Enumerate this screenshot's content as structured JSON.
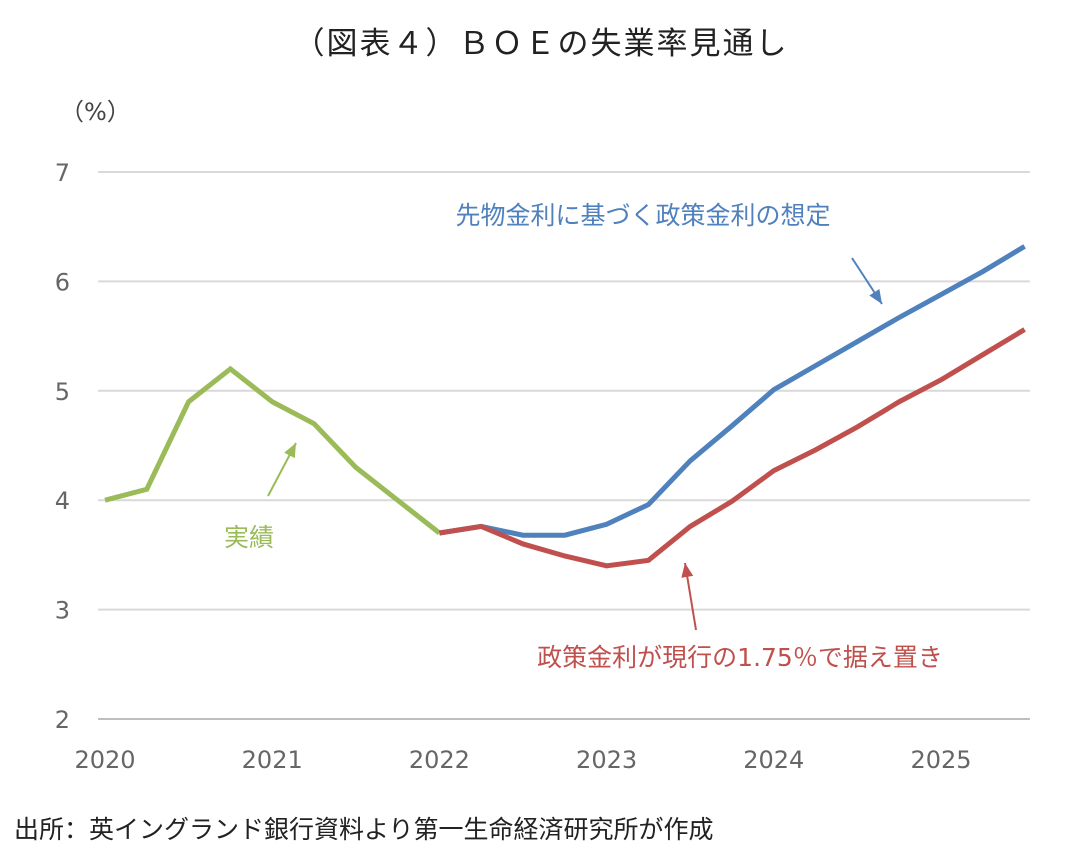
{
  "chart_data": {
    "type": "line",
    "title": "（図表４）ＢＯＥの失業率見通し",
    "ylabel": "（%）",
    "source": "出所：英イングランド銀行資料より第一生命経済研究所が作成",
    "ylim": [
      2,
      7
    ],
    "yticks": [
      "2",
      "3",
      "4",
      "5",
      "6",
      "7"
    ],
    "xticks": [
      "2020",
      "2021",
      "2022",
      "2023",
      "2024",
      "2025"
    ],
    "grid": true,
    "x_note": "quarterly from 2020 Q1",
    "series": [
      {
        "name": "実績",
        "color": "#9BBB59",
        "start_quarter": 0,
        "values": [
          4.0,
          4.1,
          4.9,
          5.2,
          4.9,
          4.7,
          4.3,
          4.0,
          3.7
        ]
      },
      {
        "name": "先物金利に基づく政策金利の想定",
        "color": "#4F81BD",
        "start_quarter": 8,
        "values": [
          3.7,
          3.76,
          3.68,
          3.68,
          3.78,
          3.96,
          4.36,
          4.68,
          5.01,
          5.23,
          5.45,
          5.67,
          5.88,
          6.09,
          6.32
        ]
      },
      {
        "name": "政策金利が現行の1.75％で据え置き",
        "color": "#C0504D",
        "start_quarter": 8,
        "values": [
          3.7,
          3.76,
          3.6,
          3.49,
          3.4,
          3.45,
          3.76,
          3.99,
          4.27,
          4.46,
          4.67,
          4.9,
          5.1,
          5.33,
          5.56
        ]
      }
    ]
  }
}
